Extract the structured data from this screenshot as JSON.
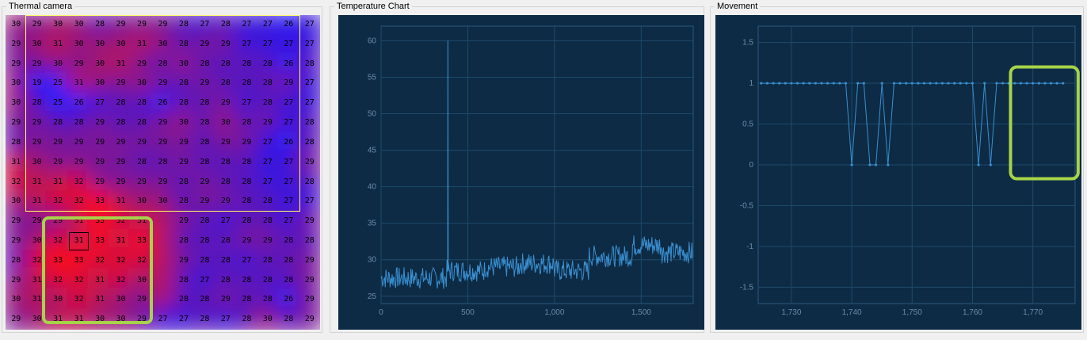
{
  "panels": {
    "thermal": {
      "title": "Thermal camera"
    },
    "temperature": {
      "title": "Temperature Chart"
    },
    "movement": {
      "title": "Movement"
    }
  },
  "thermal_grid": [
    [
      30,
      29,
      30,
      30,
      28,
      29,
      29,
      29,
      28,
      27,
      28,
      27,
      27,
      26,
      27
    ],
    [
      29,
      30,
      31,
      30,
      30,
      30,
      31,
      30,
      28,
      29,
      29,
      27,
      27,
      27,
      27
    ],
    [
      29,
      29,
      30,
      29,
      30,
      31,
      29,
      28,
      30,
      28,
      28,
      28,
      28,
      26,
      28
    ],
    [
      30,
      19,
      25,
      31,
      30,
      29,
      30,
      29,
      28,
      29,
      28,
      28,
      28,
      29,
      27
    ],
    [
      30,
      28,
      25,
      26,
      27,
      28,
      28,
      26,
      28,
      28,
      29,
      27,
      28,
      27,
      27
    ],
    [
      29,
      29,
      28,
      28,
      29,
      28,
      28,
      29,
      30,
      28,
      30,
      28,
      29,
      27,
      28
    ],
    [
      28,
      29,
      29,
      29,
      29,
      29,
      29,
      29,
      29,
      28,
      29,
      29,
      27,
      26,
      28
    ],
    [
      31,
      30,
      29,
      29,
      29,
      29,
      28,
      28,
      29,
      28,
      28,
      28,
      27,
      27,
      29
    ],
    [
      32,
      31,
      31,
      32,
      29,
      29,
      29,
      29,
      28,
      29,
      28,
      28,
      27,
      27,
      28
    ],
    [
      30,
      31,
      32,
      32,
      33,
      31,
      30,
      30,
      28,
      29,
      29,
      28,
      28,
      27,
      27
    ],
    [
      29,
      29,
      29,
      31,
      33,
      32,
      31,
      "",
      29,
      28,
      27,
      28,
      28,
      27,
      29
    ],
    [
      29,
      30,
      32,
      31,
      33,
      31,
      33,
      "",
      28,
      28,
      28,
      29,
      29,
      28,
      28
    ],
    [
      28,
      32,
      33,
      33,
      32,
      32,
      32,
      "",
      29,
      28,
      28,
      27,
      28,
      28,
      29
    ],
    [
      29,
      31,
      32,
      32,
      31,
      32,
      30,
      "",
      28,
      27,
      28,
      28,
      28,
      28,
      29
    ],
    [
      30,
      31,
      30,
      32,
      31,
      30,
      29,
      "",
      28,
      28,
      29,
      28,
      28,
      26,
      29
    ],
    [
      29,
      30,
      31,
      31,
      30,
      30,
      29,
      27,
      27,
      28,
      27,
      28,
      30,
      28,
      29
    ]
  ],
  "selected_cell": {
    "row": 11,
    "col": 3
  },
  "colors": {
    "hot": "#ff1010",
    "cold": "#1a1aff",
    "chart_bg": "#0d2b45",
    "chart_line": "#3a8fd0",
    "highlight_green": "#a6d34a",
    "roi_yellow": "#ffff66"
  },
  "chart_data": [
    {
      "type": "line",
      "name": "temperature",
      "xlim": [
        0,
        1800
      ],
      "ylim": [
        24,
        62
      ],
      "x_ticks": [
        0,
        500,
        1000,
        1500
      ],
      "x_tick_labels": [
        "0",
        "500",
        "1,000",
        "1,500"
      ],
      "y_ticks": [
        25,
        30,
        35,
        40,
        45,
        50,
        55,
        60
      ],
      "y_tick_labels": [
        "25",
        "30",
        "35",
        "40",
        "45",
        "50",
        "55",
        "60"
      ],
      "spike": {
        "x": 385,
        "y": 60
      },
      "segments": [
        {
          "x0": 0,
          "x1": 380,
          "base": 27.5
        },
        {
          "x0": 380,
          "x1": 600,
          "base": 28.5
        },
        {
          "x0": 600,
          "x1": 800,
          "base": 29
        },
        {
          "x0": 800,
          "x1": 1000,
          "base": 29.5
        },
        {
          "x0": 1000,
          "x1": 1200,
          "base": 28.5
        },
        {
          "x0": 1200,
          "x1": 1450,
          "base": 30.5
        },
        {
          "x0": 1450,
          "x1": 1620,
          "base": 32
        },
        {
          "x0": 1620,
          "x1": 1800,
          "base": 31
        }
      ]
    },
    {
      "type": "line",
      "name": "movement",
      "xlim": [
        1724.5,
        1777
      ],
      "ylim": [
        -1.7,
        1.7
      ],
      "x_ticks": [
        1730,
        1740,
        1750,
        1760,
        1770
      ],
      "x_tick_labels": [
        "1,730",
        "1,740",
        "1,750",
        "1,760",
        "1,770"
      ],
      "y_ticks": [
        1.5,
        1,
        0.5,
        0,
        -0.5,
        -1,
        -1.5
      ],
      "y_tick_labels": [
        "1.5",
        "1",
        "0.5",
        "0",
        "-0.5",
        "-1",
        "-1.5"
      ],
      "x": [
        1725,
        1726,
        1727,
        1728,
        1729,
        1730,
        1731,
        1732,
        1733,
        1734,
        1735,
        1736,
        1737,
        1738,
        1739,
        1740,
        1741,
        1742,
        1743,
        1744,
        1745,
        1746,
        1747,
        1748,
        1749,
        1750,
        1751,
        1752,
        1753,
        1754,
        1755,
        1756,
        1757,
        1758,
        1759,
        1760,
        1761,
        1762,
        1763,
        1764,
        1765,
        1766,
        1767,
        1768,
        1769,
        1770,
        1771,
        1772,
        1773,
        1774,
        1775
      ],
      "y": [
        1,
        1,
        1,
        1,
        1,
        1,
        1,
        1,
        1,
        1,
        1,
        1,
        1,
        1,
        1,
        0,
        1,
        1,
        0,
        0,
        1,
        0,
        1,
        1,
        1,
        1,
        1,
        1,
        1,
        1,
        1,
        1,
        1,
        1,
        1,
        1,
        0,
        1,
        0,
        1,
        1,
        1,
        1,
        1,
        1,
        1,
        1,
        1,
        1,
        1,
        1
      ]
    }
  ]
}
